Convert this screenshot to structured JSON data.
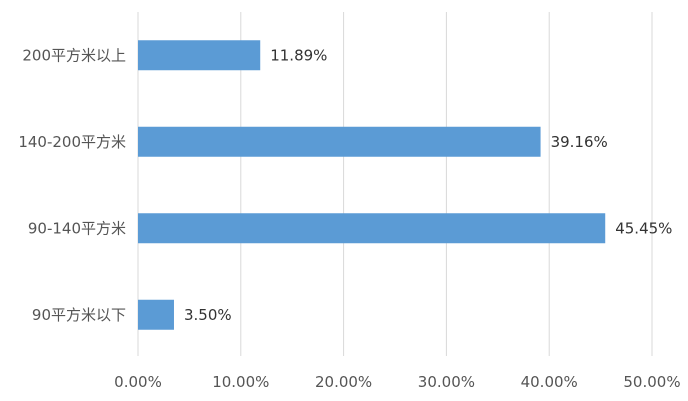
{
  "chart_data": {
    "type": "bar",
    "orientation": "horizontal",
    "title": "",
    "xlabel": "",
    "ylabel": "",
    "categories": [
      "200平方米以上",
      "140-200平方米",
      "90-140平方米",
      "90平方米以下"
    ],
    "values": [
      11.89,
      39.16,
      45.45,
      3.5
    ],
    "value_labels": [
      "11.89%",
      "39.16%",
      "45.45%",
      "3.50%"
    ],
    "xlim": [
      0,
      50
    ],
    "x_ticks": [
      0,
      10,
      20,
      30,
      40,
      50
    ],
    "x_tick_labels": [
      "0.00%",
      "10.00%",
      "20.00%",
      "30.00%",
      "40.00%",
      "50.00%"
    ],
    "grid": true,
    "legend": "none",
    "bar_color": "#5b9bd5"
  }
}
